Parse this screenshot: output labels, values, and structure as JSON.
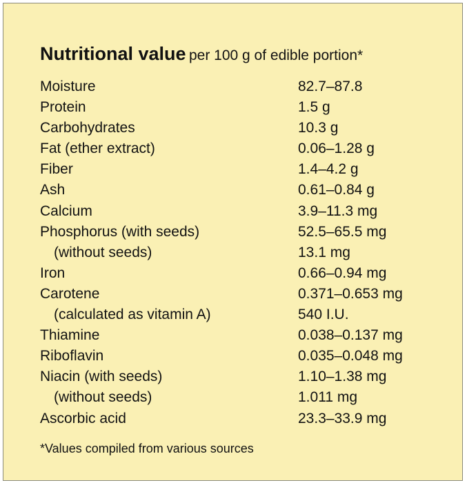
{
  "title": {
    "main": "Nutritional value",
    "sub": "per 100 g of edible portion*"
  },
  "rows": [
    {
      "label": "Moisture",
      "value": "82.7–87.8"
    },
    {
      "label": "Protein",
      "value": "1.5 g"
    },
    {
      "label": "Carbohydrates",
      "value": "10.3 g"
    },
    {
      "label": "Fat (ether extract)",
      "value": "0.06–1.28 g"
    },
    {
      "label": "Fiber",
      "value": "1.4–4.2 g"
    },
    {
      "label": "Ash",
      "value": "0.61–0.84 g"
    },
    {
      "label": "Calcium",
      "value": "3.9–11.3 mg"
    },
    {
      "label": "Phosphorus (with seeds)",
      "value": "52.5–65.5 mg"
    },
    {
      "label": "(without seeds)",
      "value": "13.1 mg",
      "indent": true
    },
    {
      "label": "Iron",
      "value": "0.66–0.94 mg"
    },
    {
      "label": "Carotene",
      "value": "0.371–0.653 mg"
    },
    {
      "label": "(calculated as vitamin A)",
      "value": "540 I.U.",
      "indent": true
    },
    {
      "label": "Thiamine",
      "value": "0.038–0.137 mg"
    },
    {
      "label": "Riboflavin",
      "value": "0.035–0.048 mg"
    },
    {
      "label": "Niacin (with seeds)",
      "value": "1.10–1.38 mg"
    },
    {
      "label": "(without seeds)",
      "value": "1.011 mg",
      "indent": true
    },
    {
      "label": "Ascorbic acid",
      "value": "23.3–33.9 mg"
    }
  ],
  "footnote": "*Values compiled from various sources",
  "colors": {
    "panel_background": "#faf0b4",
    "border": "#8a8a7a",
    "text": "#111111"
  }
}
